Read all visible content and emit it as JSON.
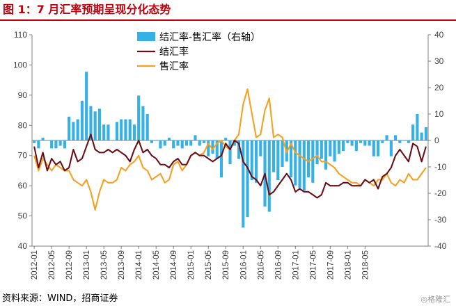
{
  "figure": {
    "title": "图 1：7 月汇率预期呈现分化态势",
    "source": "资料来源：WIND，招商证券",
    "watermark": "◎格隆汇"
  },
  "colors": {
    "title": "#c0000c",
    "bar": "#35b1e6",
    "settle": "#6b0f17",
    "sale": "#f5a121",
    "axis": "#808080"
  },
  "chart_data": {
    "type": "bar+line",
    "title": "",
    "xlabel": "",
    "ylabel": "",
    "ylim_left": [
      40,
      110
    ],
    "ylim_right": [
      -40,
      40
    ],
    "y_ticks_left": [
      40,
      50,
      60,
      70,
      80,
      90,
      100,
      110
    ],
    "y_ticks_right": [
      -40,
      -30,
      -20,
      -10,
      0,
      10,
      20,
      30,
      40
    ],
    "x_tick_labels": [
      "2012-01",
      "2012-05",
      "2012-09",
      "2013-01",
      "2013-05",
      "2013-09",
      "2014-01",
      "2014-05",
      "2014-09",
      "2015-01",
      "2015-05",
      "2015-09",
      "2016-01",
      "2016-05",
      "2016-09",
      "2017-01",
      "2017-05",
      "2017-09",
      "2018-01",
      "2018-05"
    ],
    "start": "2012-01",
    "legend_position": "top-center",
    "series": [
      {
        "name": "结汇率-售汇率（右轴）",
        "type": "bar",
        "axis": "right",
        "values": [
          -1,
          -3,
          1,
          0,
          -3,
          -3,
          -2,
          -3,
          9,
          7,
          8,
          15,
          26,
          13,
          11,
          12,
          6,
          6,
          0,
          7,
          8,
          8,
          8,
          6,
          17,
          13,
          10,
          -1,
          0,
          -3,
          -2,
          1,
          -3,
          -2,
          -3,
          -2,
          -2,
          2,
          -2,
          -1,
          -6,
          -5,
          -7,
          -14,
          1,
          -9,
          -2,
          -7,
          -33,
          -29,
          -15,
          -16,
          -6,
          -25,
          -27,
          -12,
          -15,
          -10,
          -8,
          -14,
          -17,
          -18,
          -19,
          -14,
          -16,
          -9,
          -7,
          -11,
          -6,
          -8,
          -5,
          -4,
          -1,
          -2,
          -4,
          -1,
          -2,
          -2,
          -6,
          -6,
          -1,
          2,
          -6,
          2,
          -1,
          0,
          -1,
          6,
          10,
          3,
          5
        ]
      },
      {
        "name": "结汇率",
        "type": "line",
        "axis": "left",
        "values": [
          73,
          66,
          71,
          65,
          69,
          67,
          68,
          65,
          66,
          72,
          68,
          69,
          73,
          77,
          72,
          71,
          71,
          72,
          71,
          72,
          71,
          70,
          68,
          72,
          75,
          71,
          72,
          70,
          69,
          67,
          67,
          66,
          68,
          69,
          67,
          67,
          70,
          71,
          70,
          70,
          69,
          68,
          69,
          70,
          74,
          72,
          75,
          74,
          68,
          66,
          63,
          62,
          60,
          64,
          57,
          58,
          60,
          62,
          64,
          62,
          58,
          59,
          58,
          58,
          57,
          56,
          57,
          61,
          60,
          60,
          60,
          61,
          61,
          60,
          60,
          60,
          62,
          61,
          62,
          59,
          63,
          64,
          66,
          70,
          72,
          70,
          68,
          74,
          73,
          68,
          73
        ]
      },
      {
        "name": "售汇率",
        "type": "line",
        "axis": "left",
        "values": [
          70,
          65,
          69,
          67,
          65,
          67,
          66,
          65,
          65,
          62,
          61,
          60,
          62,
          58,
          52,
          58,
          62,
          61,
          61,
          62,
          66,
          65,
          67,
          68,
          70,
          66,
          65,
          62,
          63,
          64,
          61,
          62,
          67,
          68,
          65,
          67,
          70,
          71,
          70,
          71,
          74,
          72,
          74,
          75,
          73,
          72,
          75,
          77,
          87,
          92,
          84,
          76,
          77,
          85,
          89,
          76,
          77,
          76,
          71,
          74,
          71,
          70,
          69,
          68,
          69,
          70,
          68,
          68,
          67,
          66,
          64,
          63,
          62,
          61,
          61,
          60,
          62,
          61,
          60,
          62,
          62,
          64,
          61,
          60,
          62,
          61,
          64,
          62,
          62,
          64,
          66
        ]
      }
    ]
  }
}
